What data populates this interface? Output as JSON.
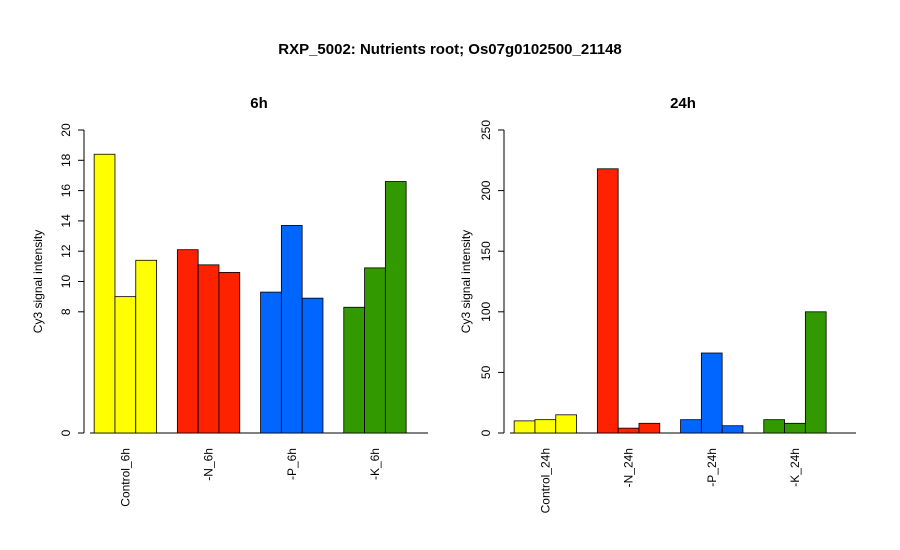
{
  "title": "RXP_5002: Nutrients root; Os07g0102500_21148",
  "chart_data": [
    {
      "type": "bar",
      "title": "6h",
      "ylabel": "Cy3 signal intensity",
      "ylim": [
        0,
        20
      ],
      "yticks": [
        0,
        8,
        10,
        12,
        14,
        16,
        18,
        20
      ],
      "categories": [
        "Control_6h",
        "-N_6h",
        "-P_6h",
        "-K_6h"
      ],
      "colors": [
        "#ffff00",
        "#ff2200",
        "#0066ff",
        "#339900"
      ],
      "values": [
        [
          18.4,
          9.0,
          11.4
        ],
        [
          12.1,
          11.1,
          10.6
        ],
        [
          9.3,
          13.7,
          8.9
        ],
        [
          8.3,
          10.9,
          16.6
        ]
      ]
    },
    {
      "type": "bar",
      "title": "24h",
      "ylabel": "Cy3 signal intensity",
      "ylim": [
        0,
        250
      ],
      "yticks": [
        0,
        50,
        100,
        150,
        200,
        250
      ],
      "categories": [
        "Control_24h",
        "-N_24h",
        "-P_24h",
        "-K_24h"
      ],
      "colors": [
        "#ffff00",
        "#ff2200",
        "#0066ff",
        "#339900"
      ],
      "values": [
        [
          10,
          11,
          15
        ],
        [
          218,
          4,
          8
        ],
        [
          11,
          66,
          6
        ],
        [
          11,
          8,
          100
        ]
      ]
    }
  ]
}
